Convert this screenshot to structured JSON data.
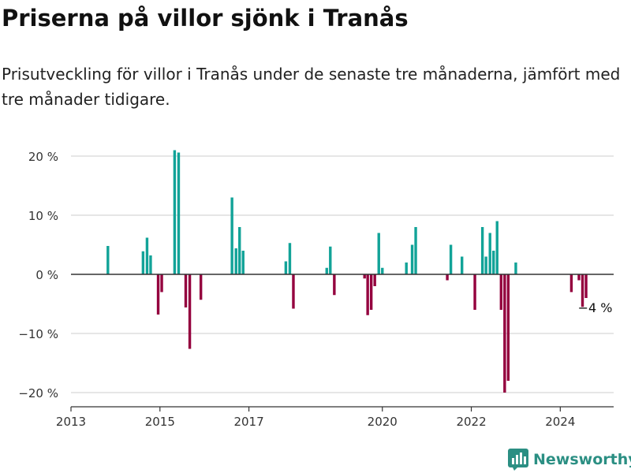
{
  "header": {
    "title": "Priserna på villor sjönk i Tranås",
    "subtitle": "Prisutveckling för villor i Tranås under de senaste tre månaderna, jämfört med tre månader tidigare."
  },
  "brand": {
    "name": "Newsworthy",
    "logo_icon": "bar-chart-icon",
    "color": "#2b8f83"
  },
  "chart_data": {
    "type": "bar",
    "x_unit": "year (decimal)",
    "y_unit": "%",
    "xlim": [
      2013,
      2025.2
    ],
    "ylim": [
      -22,
      22
    ],
    "y_ticks": [
      20,
      10,
      0,
      -10,
      -20
    ],
    "y_tick_labels": [
      "20 %",
      "10 %",
      "0 %",
      "−10 %",
      "−20 %"
    ],
    "x_ticks": [
      2013,
      2015,
      2017,
      2020,
      2022,
      2024
    ],
    "x_tick_labels": [
      "2013",
      "2015",
      "2017",
      "2020",
      "2022",
      "2024"
    ],
    "grid": true,
    "colors": {
      "positive": "#12a398",
      "negative": "#94003e",
      "zero_line": "#333333",
      "grid": "#dddddd"
    },
    "annotation": {
      "label": "−4 %",
      "x": 2024.5,
      "y": -4
    },
    "bars": [
      {
        "x": 2013.83,
        "y": 4.8
      },
      {
        "x": 2014.62,
        "y": 3.9
      },
      {
        "x": 2014.71,
        "y": 6.2
      },
      {
        "x": 2014.79,
        "y": 3.2
      },
      {
        "x": 2014.96,
        "y": -6.8
      },
      {
        "x": 2015.04,
        "y": -3.0
      },
      {
        "x": 2015.33,
        "y": 21.0
      },
      {
        "x": 2015.42,
        "y": 20.6
      },
      {
        "x": 2015.58,
        "y": -5.6
      },
      {
        "x": 2015.67,
        "y": -12.6
      },
      {
        "x": 2015.92,
        "y": -4.3
      },
      {
        "x": 2016.62,
        "y": 13.0
      },
      {
        "x": 2016.71,
        "y": 4.4
      },
      {
        "x": 2016.79,
        "y": 8.0
      },
      {
        "x": 2016.87,
        "y": 4.0
      },
      {
        "x": 2017.83,
        "y": 2.2
      },
      {
        "x": 2017.92,
        "y": 5.3
      },
      {
        "x": 2018.0,
        "y": -5.8
      },
      {
        "x": 2018.75,
        "y": 1.1
      },
      {
        "x": 2018.83,
        "y": 4.7
      },
      {
        "x": 2018.92,
        "y": -3.5
      },
      {
        "x": 2019.6,
        "y": -0.7
      },
      {
        "x": 2019.67,
        "y": -6.9
      },
      {
        "x": 2019.75,
        "y": -6.0
      },
      {
        "x": 2019.83,
        "y": -2.0
      },
      {
        "x": 2019.92,
        "y": 7.0
      },
      {
        "x": 2020.0,
        "y": 1.1
      },
      {
        "x": 2020.54,
        "y": 2.0
      },
      {
        "x": 2020.67,
        "y": 5.0
      },
      {
        "x": 2020.75,
        "y": 8.0
      },
      {
        "x": 2021.46,
        "y": -1.0
      },
      {
        "x": 2021.54,
        "y": 5.0
      },
      {
        "x": 2021.79,
        "y": 3.0
      },
      {
        "x": 2022.08,
        "y": -6.0
      },
      {
        "x": 2022.25,
        "y": 8.0
      },
      {
        "x": 2022.33,
        "y": 3.0
      },
      {
        "x": 2022.42,
        "y": 7.0
      },
      {
        "x": 2022.5,
        "y": 4.0
      },
      {
        "x": 2022.58,
        "y": 9.0
      },
      {
        "x": 2022.67,
        "y": -6.0
      },
      {
        "x": 2022.75,
        "y": -20.0
      },
      {
        "x": 2022.83,
        "y": -18.0
      },
      {
        "x": 2023.0,
        "y": 2.0
      },
      {
        "x": 2024.25,
        "y": -3.0
      },
      {
        "x": 2024.42,
        "y": -1.0
      },
      {
        "x": 2024.5,
        "y": -5.5
      },
      {
        "x": 2024.58,
        "y": -4.0
      }
    ]
  }
}
